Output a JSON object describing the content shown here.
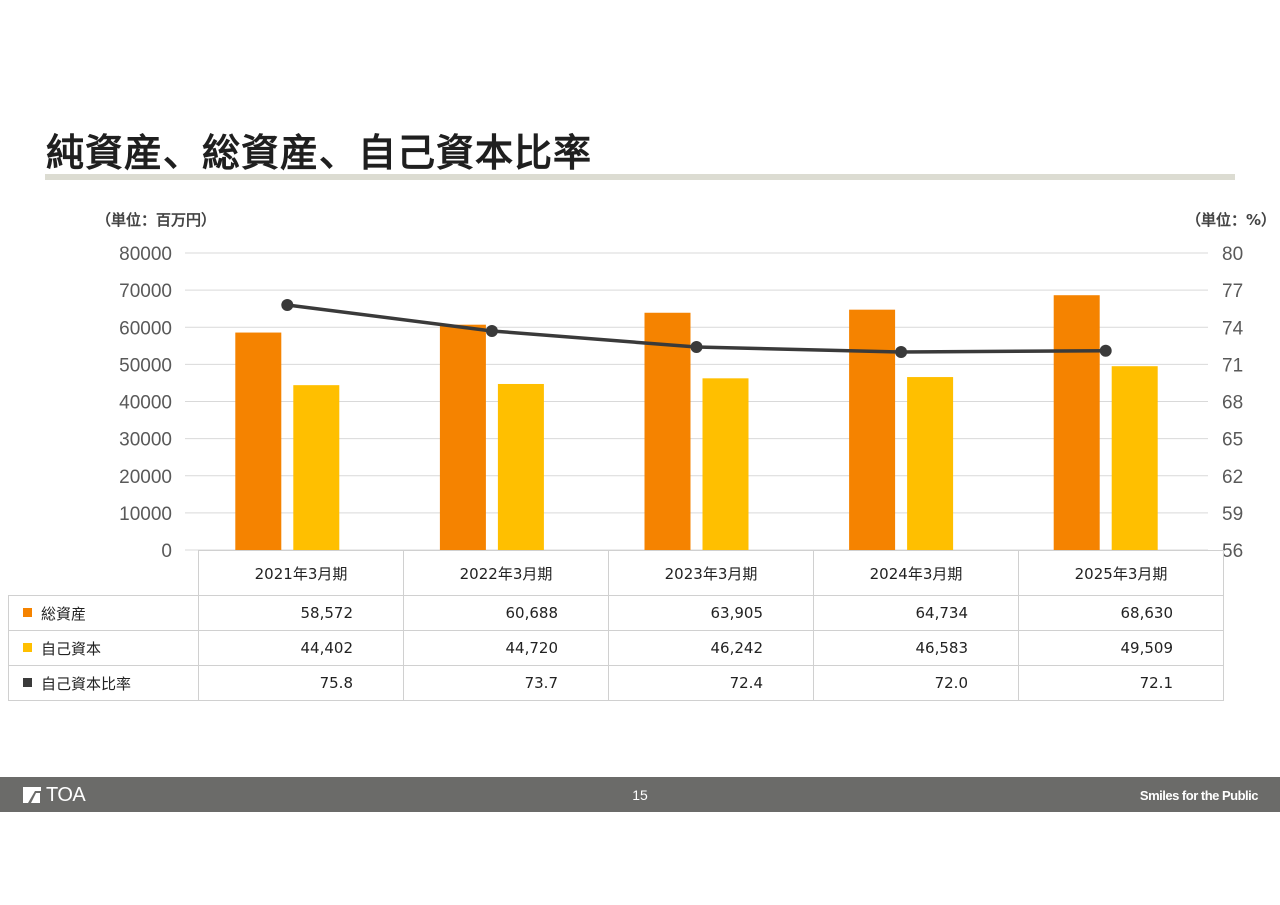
{
  "page": {
    "title": "純資産、総資産、自己資本比率",
    "unit_left": "（単位：百万円）",
    "unit_right": "（単位：%）",
    "page_number": "15",
    "brand": "TOA",
    "tagline": "Smiles for the Public"
  },
  "colors": {
    "total_assets": "#f58300",
    "equity": "#ffbf00",
    "ratio": "#3a3a3a",
    "gridline": "#d9d9d9",
    "footer": "#6b6b69"
  },
  "chart_data": {
    "type": "bar",
    "categories": [
      "2021年3月期",
      "2022年3月期",
      "2023年3月期",
      "2024年3月期",
      "2025年3月期"
    ],
    "series": [
      {
        "name": "総資産",
        "type": "bar",
        "axis": "left",
        "values": [
          58572,
          60688,
          63905,
          64734,
          68630
        ]
      },
      {
        "name": "自己資本",
        "type": "bar",
        "axis": "left",
        "values": [
          44402,
          44720,
          46242,
          46583,
          49509
        ]
      },
      {
        "name": "自己資本比率",
        "type": "line",
        "axis": "right",
        "values": [
          75.8,
          73.7,
          72.4,
          72.0,
          72.1
        ]
      }
    ],
    "table": {
      "rows": [
        {
          "label": "総資産",
          "values": [
            "58,572",
            "60,688",
            "63,905",
            "64,734",
            "68,630"
          ]
        },
        {
          "label": "自己資本",
          "values": [
            "44,402",
            "44,720",
            "46,242",
            "46,583",
            "49,509"
          ]
        },
        {
          "label": "自己資本比率",
          "values": [
            "75.8",
            "73.7",
            "72.4",
            "72.0",
            "72.1"
          ]
        }
      ]
    },
    "y_left": {
      "ylim": [
        0,
        80000
      ],
      "ticks": [
        "0",
        "10000",
        "20000",
        "30000",
        "40000",
        "50000",
        "60000",
        "70000",
        "80000"
      ]
    },
    "y_right": {
      "ylim": [
        56,
        80
      ],
      "ticks": [
        "56",
        "59",
        "62",
        "65",
        "68",
        "71",
        "74",
        "77",
        "80"
      ]
    },
    "grid": true,
    "legend": "data-table"
  }
}
